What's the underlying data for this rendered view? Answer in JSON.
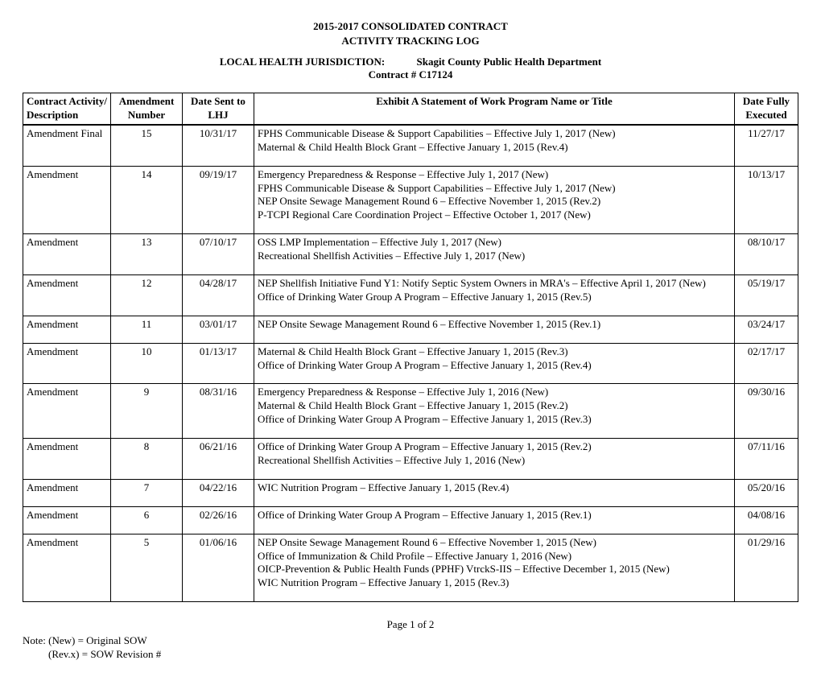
{
  "header": {
    "title_line1": "2015-2017 CONSOLIDATED CONTRACT",
    "title_line2": "ACTIVITY TRACKING LOG",
    "jurisdiction_label": "LOCAL HEALTH JURISDICTION:",
    "jurisdiction_name": "Skagit County Public Health Department",
    "contract_label": "Contract # C17124"
  },
  "columns": {
    "activity": "Contract Activity/ Description",
    "amend": "Amendment Number",
    "date_sent": "Date Sent to LHJ",
    "exhibit": "Exhibit A Statement of Work Program Name or Title",
    "executed": "Date Fully Executed"
  },
  "rows": [
    {
      "activity": "Amendment Final",
      "amend": "15",
      "date_sent": "10/31/17",
      "exhibit": [
        "FPHS Communicable Disease & Support Capabilities – Effective July 1, 2017 (New)",
        "Maternal & Child Health Block Grant – Effective January 1, 2015 (Rev.4)"
      ],
      "executed": "11/27/17"
    },
    {
      "activity": "Amendment",
      "amend": "14",
      "date_sent": "09/19/17",
      "exhibit": [
        "Emergency Preparedness & Response – Effective July 1, 2017 (New)",
        "FPHS Communicable Disease & Support Capabilities – Effective July 1, 2017 (New)",
        "NEP Onsite Sewage Management Round 6 – Effective November 1, 2015 (Rev.2)",
        "P-TCPI Regional Care Coordination Project – Effective October 1, 2017 (New)"
      ],
      "executed": "10/13/17"
    },
    {
      "activity": "Amendment",
      "amend": "13",
      "date_sent": "07/10/17",
      "exhibit": [
        "OSS LMP Implementation – Effective July 1, 2017 (New)",
        "Recreational Shellfish Activities – Effective July 1, 2017 (New)"
      ],
      "executed": "08/10/17"
    },
    {
      "activity": "Amendment",
      "amend": "12",
      "date_sent": "04/28/17",
      "exhibit": [
        "NEP Shellfish Initiative Fund Y1: Notify Septic System Owners in MRA's – Effective April 1, 2017 (New)",
        "Office of Drinking Water Group A Program – Effective January 1, 2015 (Rev.5)"
      ],
      "executed": "05/19/17"
    },
    {
      "activity": "Amendment",
      "amend": "11",
      "date_sent": "03/01/17",
      "exhibit": [
        "NEP Onsite Sewage Management Round 6 – Effective November 1, 2015 (Rev.1)"
      ],
      "executed": "03/24/17"
    },
    {
      "activity": "Amendment",
      "amend": "10",
      "date_sent": "01/13/17",
      "exhibit": [
        "Maternal & Child Health Block Grant – Effective January 1, 2015 (Rev.3)",
        "Office of Drinking Water Group A Program – Effective January 1, 2015 (Rev.4)"
      ],
      "executed": "02/17/17"
    },
    {
      "activity": "Amendment",
      "amend": "9",
      "date_sent": "08/31/16",
      "exhibit": [
        "Emergency Preparedness & Response – Effective July 1, 2016 (New)",
        "Maternal & Child Health Block Grant – Effective January 1, 2015 (Rev.2)",
        "Office of Drinking Water Group A Program – Effective January 1, 2015 (Rev.3)"
      ],
      "executed": "09/30/16"
    },
    {
      "activity": "Amendment",
      "amend": "8",
      "date_sent": "06/21/16",
      "exhibit": [
        "Office of Drinking Water Group A Program – Effective January 1, 2015 (Rev.2)",
        "Recreational Shellfish Activities – Effective July 1, 2016 (New)"
      ],
      "executed": "07/11/16"
    },
    {
      "activity": "Amendment",
      "amend": "7",
      "date_sent": "04/22/16",
      "exhibit": [
        "WIC Nutrition Program – Effective January 1, 2015 (Rev.4)"
      ],
      "executed": "05/20/16"
    },
    {
      "activity": "Amendment",
      "amend": "6",
      "date_sent": "02/26/16",
      "exhibit": [
        "Office of Drinking Water Group A Program – Effective January 1, 2015 (Rev.1)"
      ],
      "executed": "04/08/16"
    },
    {
      "activity": "Amendment",
      "amend": "5",
      "date_sent": "01/06/16",
      "exhibit": [
        "NEP Onsite Sewage Management Round 6 – Effective November 1, 2015 (New)",
        "Office of Immunization & Child Profile – Effective January 1, 2016 (New)",
        "OICP-Prevention & Public Health Funds (PPHF) VtrckS-IIS – Effective December 1, 2015 (New)",
        "WIC Nutrition Program – Effective January 1, 2015 (Rev.3)"
      ],
      "executed": "01/29/16"
    }
  ],
  "footer": {
    "page": "Page 1 of 2",
    "note_line1": "Note:  (New) = Original SOW",
    "note_line2": "(Rev.x) = SOW Revision #"
  }
}
